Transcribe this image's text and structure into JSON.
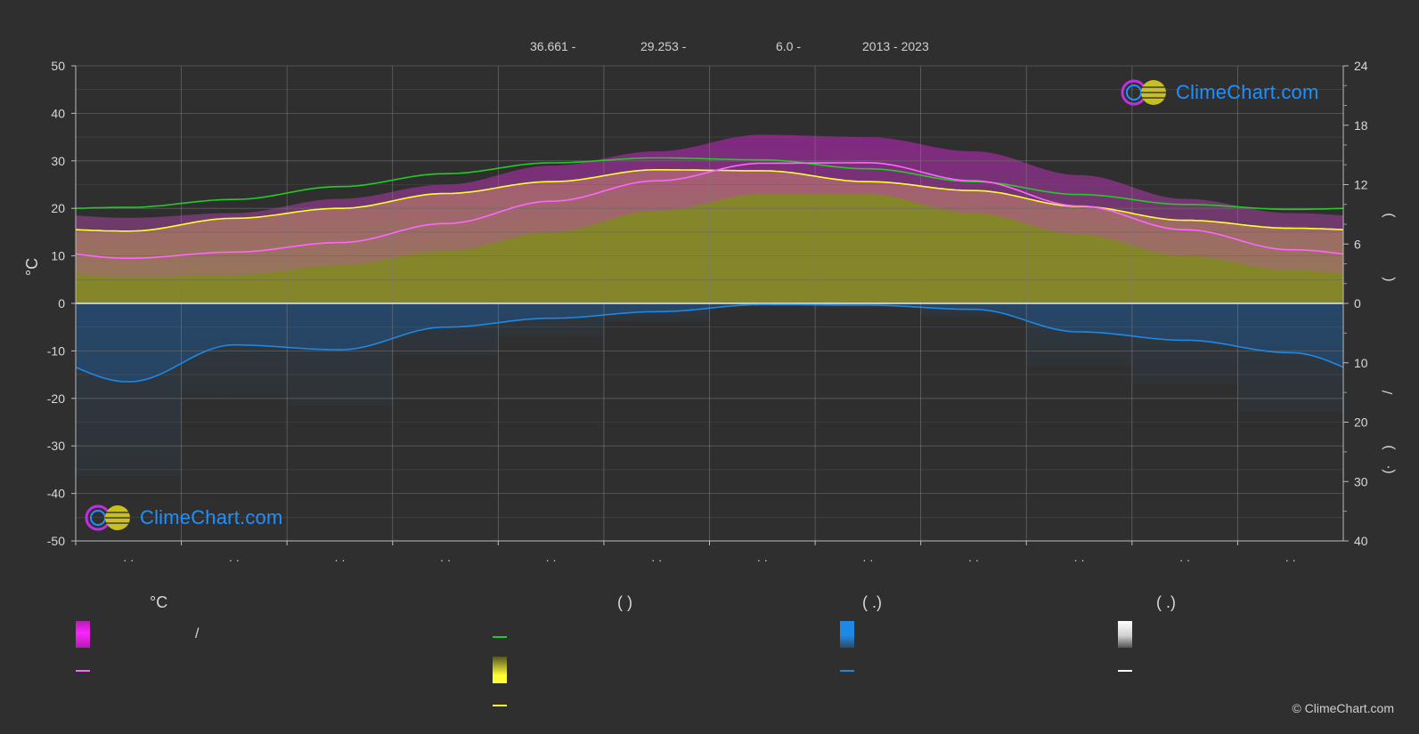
{
  "header": {
    "lat": "36.661 -",
    "lon": "29.253 -",
    "elev": "6.0 -",
    "period": "2013 - 2023"
  },
  "watermark": {
    "text": "ClimeChart.com"
  },
  "copyright": "© ClimeChart.com",
  "legend": {
    "col1_title": "°C",
    "col2_title": "(          )",
    "col3_title": "(   .)",
    "col4_title": "(   .)",
    "slash": "/"
  },
  "colors": {
    "background": "#2f2f2f",
    "temp_range": "#e020e0",
    "avg_temp": "#ff66ff",
    "daylight": "#22cc22",
    "sunshine_fill": "#b8b832",
    "sunshine_line": "#ffff33",
    "rain": "#1e88e5",
    "snow": "#ffffff"
  },
  "chart_data": {
    "type": "line",
    "months": [
      "· ·",
      "· ·",
      "· ·",
      "· ·",
      "· ·",
      "· ·",
      "· ·",
      "· ·",
      "· ·",
      "· ·",
      "· ·",
      "· ·"
    ],
    "y_left": {
      "label": "°C",
      "ylim": [
        -50,
        50
      ],
      "ticks": [
        "50",
        "40",
        "30",
        "20",
        "10",
        "0",
        "-10",
        "-20",
        "-30",
        "-40",
        "-50"
      ]
    },
    "y_right_top": {
      "ylim": [
        0,
        24
      ],
      "ticks": [
        "24",
        "18",
        "12",
        "6",
        "0"
      ],
      "label_chars": [
        ")",
        "("
      ]
    },
    "y_right_bottom": {
      "ylim": [
        0,
        40
      ],
      "ticks": [
        "0",
        "10",
        "20",
        "30",
        "40"
      ],
      "label_chars": [
        "/",
        ")",
        "·",
        "("
      ]
    },
    "grid": true,
    "series": [
      {
        "key": "daylight",
        "axis": "right_top",
        "values": [
          9.7,
          10.5,
          11.8,
          13.1,
          14.2,
          14.7,
          14.5,
          13.6,
          12.3,
          11.0,
          10.0,
          9.5
        ]
      },
      {
        "key": "sunshine",
        "axis": "right_top",
        "values": [
          7.3,
          8.6,
          9.6,
          11.1,
          12.3,
          13.5,
          13.4,
          12.3,
          11.4,
          9.8,
          8.4,
          7.6
        ]
      },
      {
        "key": "avg_temp",
        "axis": "left",
        "values": [
          9.5,
          10.8,
          12.8,
          16.8,
          21.5,
          25.8,
          29.5,
          29.6,
          25.8,
          20.5,
          15.5,
          11.3
        ]
      },
      {
        "key": "temp_max",
        "axis": "left",
        "values": [
          18.0,
          19.0,
          22.0,
          25.0,
          29.0,
          32.0,
          35.5,
          35.0,
          32.0,
          27.0,
          22.0,
          19.0
        ]
      },
      {
        "key": "temp_min",
        "axis": "left",
        "values": [
          5.5,
          6.0,
          8.0,
          11.0,
          15.0,
          19.5,
          23.0,
          23.0,
          19.0,
          14.5,
          10.0,
          7.0
        ]
      },
      {
        "key": "precipitation",
        "axis": "right_bottom",
        "values": [
          13.2,
          7.0,
          7.8,
          4.0,
          2.5,
          1.4,
          0.2,
          0.3,
          1.0,
          4.8,
          6.2,
          8.3
        ]
      }
    ]
  }
}
